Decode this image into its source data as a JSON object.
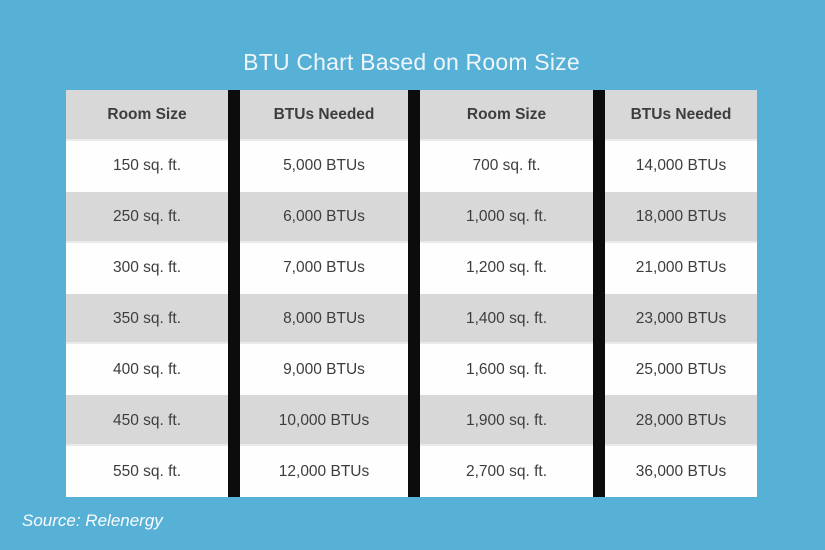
{
  "page": {
    "title": "BTU Chart Based on Room Size",
    "source": "Source: Relenergy"
  },
  "colors": {
    "background": "#57b0d6",
    "row_gray": "#d8d8d8",
    "row_white": "#fefefe",
    "divider_black": "#0c0c0c",
    "cell_text": "#3d3d3d",
    "title_text": "#eff6fa",
    "source_text": "#fbfdfe"
  },
  "chart_data": {
    "type": "table",
    "title": "BTU Chart Based on Room Size",
    "columns": [
      "Room Size",
      "BTUs Needed",
      "Room Size",
      "BTUs Needed"
    ],
    "rows": [
      [
        "150 sq. ft.",
        "5,000 BTUs",
        "700 sq. ft.",
        "14,000 BTUs"
      ],
      [
        "250 sq. ft.",
        "6,000 BTUs",
        "1,000 sq. ft.",
        "18,000 BTUs"
      ],
      [
        "300 sq. ft.",
        "7,000 BTUs",
        "1,200 sq. ft.",
        "21,000 BTUs"
      ],
      [
        "350 sq. ft.",
        "8,000 BTUs",
        "1,400 sq. ft.",
        "23,000 BTUs"
      ],
      [
        "400 sq. ft.",
        "9,000 BTUs",
        "1,600 sq. ft.",
        "25,000 BTUs"
      ],
      [
        "450 sq. ft.",
        "10,000 BTUs",
        "1,900 sq. ft.",
        "28,000 BTUs"
      ],
      [
        "550 sq. ft.",
        "12,000 BTUs",
        "2,700 sq. ft.",
        "36,000 BTUs"
      ]
    ],
    "source": "Source: Relenergy",
    "layout": {
      "row_striping": "gray header, rows alternate white/gray",
      "dividers": "thick black vertical bars between columns",
      "legend": "none"
    }
  }
}
